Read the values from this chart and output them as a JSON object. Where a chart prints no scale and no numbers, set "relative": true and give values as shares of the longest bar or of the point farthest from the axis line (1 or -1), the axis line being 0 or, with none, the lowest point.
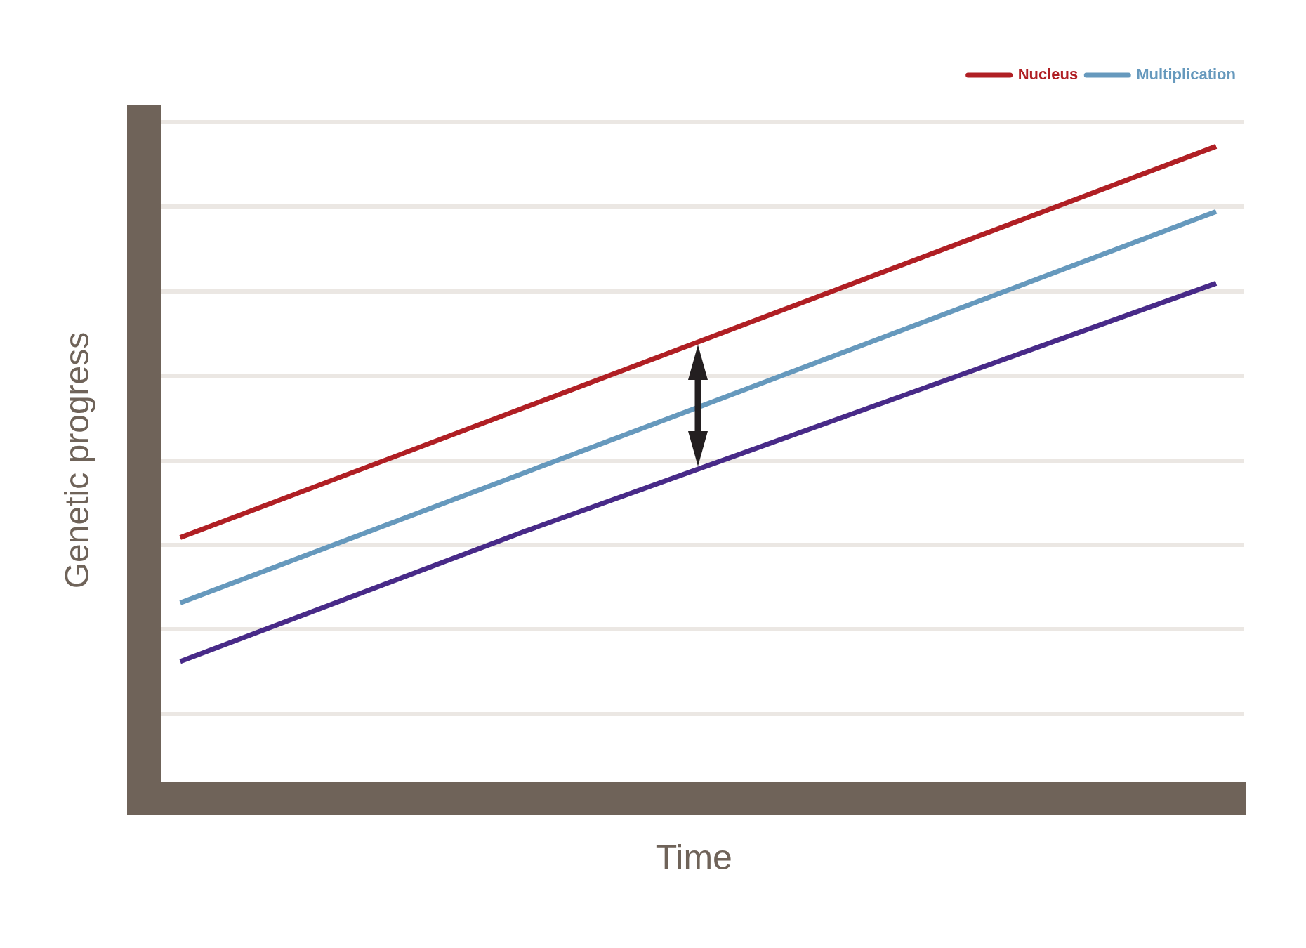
{
  "chart_data": {
    "type": "line",
    "xlabel": "Time",
    "ylabel": "Genetic progress",
    "categories": [
      null,
      null,
      null,
      null
    ],
    "relative": true,
    "series": [
      {
        "name": "Nucleus",
        "color": "#b01f24",
        "values": [
          0.4,
          0.6,
          0.8,
          1
        ]
      },
      {
        "name": "Multiplication",
        "color": "#6699bd",
        "values": [
          0.3,
          0.5,
          0.7,
          0.9
        ]
      },
      {
        "color": "#482a88",
        "values": [
          0.21,
          0.41,
          0.6,
          0.79
        ]
      }
    ],
    "grid": "y",
    "legend": "top right"
  }
}
